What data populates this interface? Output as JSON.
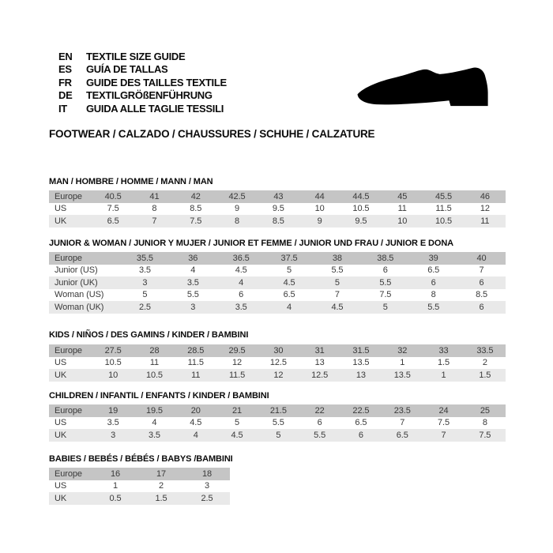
{
  "header": {
    "languages": [
      {
        "code": "EN",
        "label": "TEXTILE SIZE GUIDE"
      },
      {
        "code": "ES",
        "label": "GUÍA DE TALLAS"
      },
      {
        "code": "FR",
        "label": "GUIDE DES TAILLES TEXTILE"
      },
      {
        "code": "DE",
        "label": "TEXTILGRÖßENFÜHRUNG"
      },
      {
        "code": "IT",
        "label": "GUIDA ALLE TAGLIE TESSILI"
      }
    ],
    "shoe_icon": "dress-shoe-silhouette",
    "category_title": "FOOTWEAR / CALZADO / CHAUSSURES / SCHUHE / CALZATURE"
  },
  "colors": {
    "header_row_bg": "#c5c5c5",
    "stripe_row_bg": "#e9e9e9",
    "plain_row_bg": "#ffffff",
    "table_text": "#3a3a3a",
    "title_text": "#0b0b0b",
    "shoe_fill": "#000000"
  },
  "tables": [
    {
      "title": "MAN / HOMBRE / HOMME / MANN / MAN",
      "rows": [
        {
          "label": "Europe",
          "values": [
            "40.5",
            "41",
            "42",
            "42.5",
            "43",
            "44",
            "44.5",
            "45",
            "45.5",
            "46"
          ]
        },
        {
          "label": "US",
          "values": [
            "7.5",
            "8",
            "8.5",
            "9",
            "9.5",
            "10",
            "10.5",
            "11",
            "11.5",
            "12"
          ]
        },
        {
          "label": "UK",
          "values": [
            "6.5",
            "7",
            "7.5",
            "8",
            "8.5",
            "9",
            "9.5",
            "10",
            "10.5",
            "11"
          ]
        }
      ]
    },
    {
      "title": "JUNIOR & WOMAN / JUNIOR Y MUJER / JUNIOR ET FEMME / JUNIOR UND FRAU / JUNIOR E DONA",
      "rows": [
        {
          "label": "Europe",
          "values": [
            "35.5",
            "36",
            "36.5",
            "37.5",
            "38",
            "38.5",
            "39",
            "40"
          ]
        },
        {
          "label": "Junior (US)",
          "values": [
            "3.5",
            "4",
            "4.5",
            "5",
            "5.5",
            "6",
            "6.5",
            "7"
          ]
        },
        {
          "label": "Junior (UK)",
          "values": [
            "3",
            "3.5",
            "4",
            "4.5",
            "5",
            "5.5",
            "6",
            "6"
          ]
        },
        {
          "label": "Woman (US)",
          "values": [
            "5",
            "5.5",
            "6",
            "6.5",
            "7",
            "7.5",
            "8",
            "8.5"
          ]
        },
        {
          "label": "Woman (UK)",
          "values": [
            "2.5",
            "3",
            "3.5",
            "4",
            "4.5",
            "5",
            "5.5",
            "6"
          ]
        }
      ]
    },
    {
      "title": "KIDS / NIÑOS / DES GAMINS / KINDER / BAMBINI",
      "rows": [
        {
          "label": "Europe",
          "values": [
            "27.5",
            "28",
            "28.5",
            "29.5",
            "30",
            "31",
            "31.5",
            "32",
            "33",
            "33.5"
          ]
        },
        {
          "label": "US",
          "values": [
            "10.5",
            "11",
            "11.5",
            "12",
            "12.5",
            "13",
            "13.5",
            "1",
            "1.5",
            "2"
          ]
        },
        {
          "label": "UK",
          "values": [
            "10",
            "10.5",
            "11",
            "11.5",
            "12",
            "12.5",
            "13",
            "13.5",
            "1",
            "1.5"
          ]
        }
      ]
    },
    {
      "title": "CHILDREN / INFANTIL / ENFANTS / KINDER / BAMBINI",
      "rows": [
        {
          "label": "Europe",
          "values": [
            "19",
            "19.5",
            "20",
            "21",
            "21.5",
            "22",
            "22.5",
            "23.5",
            "24",
            "25"
          ]
        },
        {
          "label": "US",
          "values": [
            "3.5",
            "4",
            "4.5",
            "5",
            "5.5",
            "6",
            "6.5",
            "7",
            "7.5",
            "8"
          ]
        },
        {
          "label": "UK",
          "values": [
            "3",
            "3.5",
            "4",
            "4.5",
            "5",
            "5.5",
            "6",
            "6.5",
            "7",
            "7.5"
          ]
        }
      ]
    },
    {
      "title": "BABIES / BEBÉS / BÉBÉS / BABYS /BAMBINI",
      "rows": [
        {
          "label": "Europe",
          "values": [
            "16",
            "17",
            "18"
          ]
        },
        {
          "label": "US",
          "values": [
            "1",
            "2",
            "3"
          ]
        },
        {
          "label": "UK",
          "values": [
            "0.5",
            "1.5",
            "2.5"
          ]
        }
      ]
    }
  ]
}
